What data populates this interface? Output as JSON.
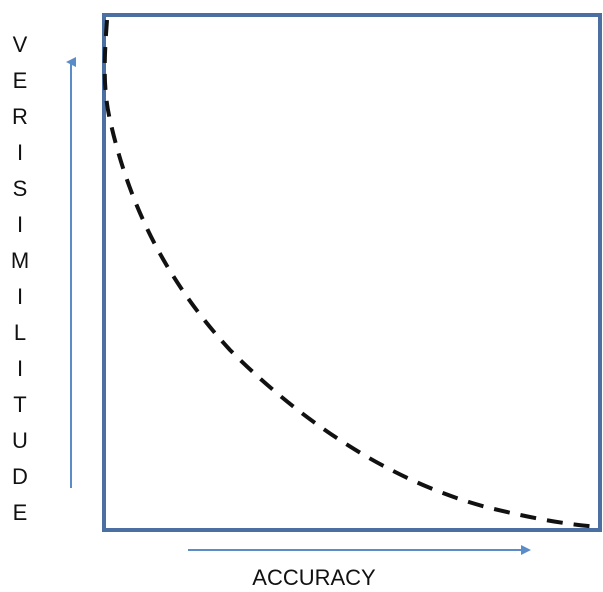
{
  "diagram": {
    "y_axis_label": "VERISIMILITUDE",
    "x_axis_label": "ACCURACY",
    "colors": {
      "frame": "#4a6fa0",
      "arrow": "#5b8cc8",
      "curve": "#111111",
      "text": "#111111",
      "background": "#ffffff"
    },
    "curve": {
      "style": "dashed",
      "shape": "decreasing-convex"
    },
    "icons": {
      "y_arrow": "arrow-up-icon",
      "x_arrow": "arrow-right-icon"
    }
  }
}
